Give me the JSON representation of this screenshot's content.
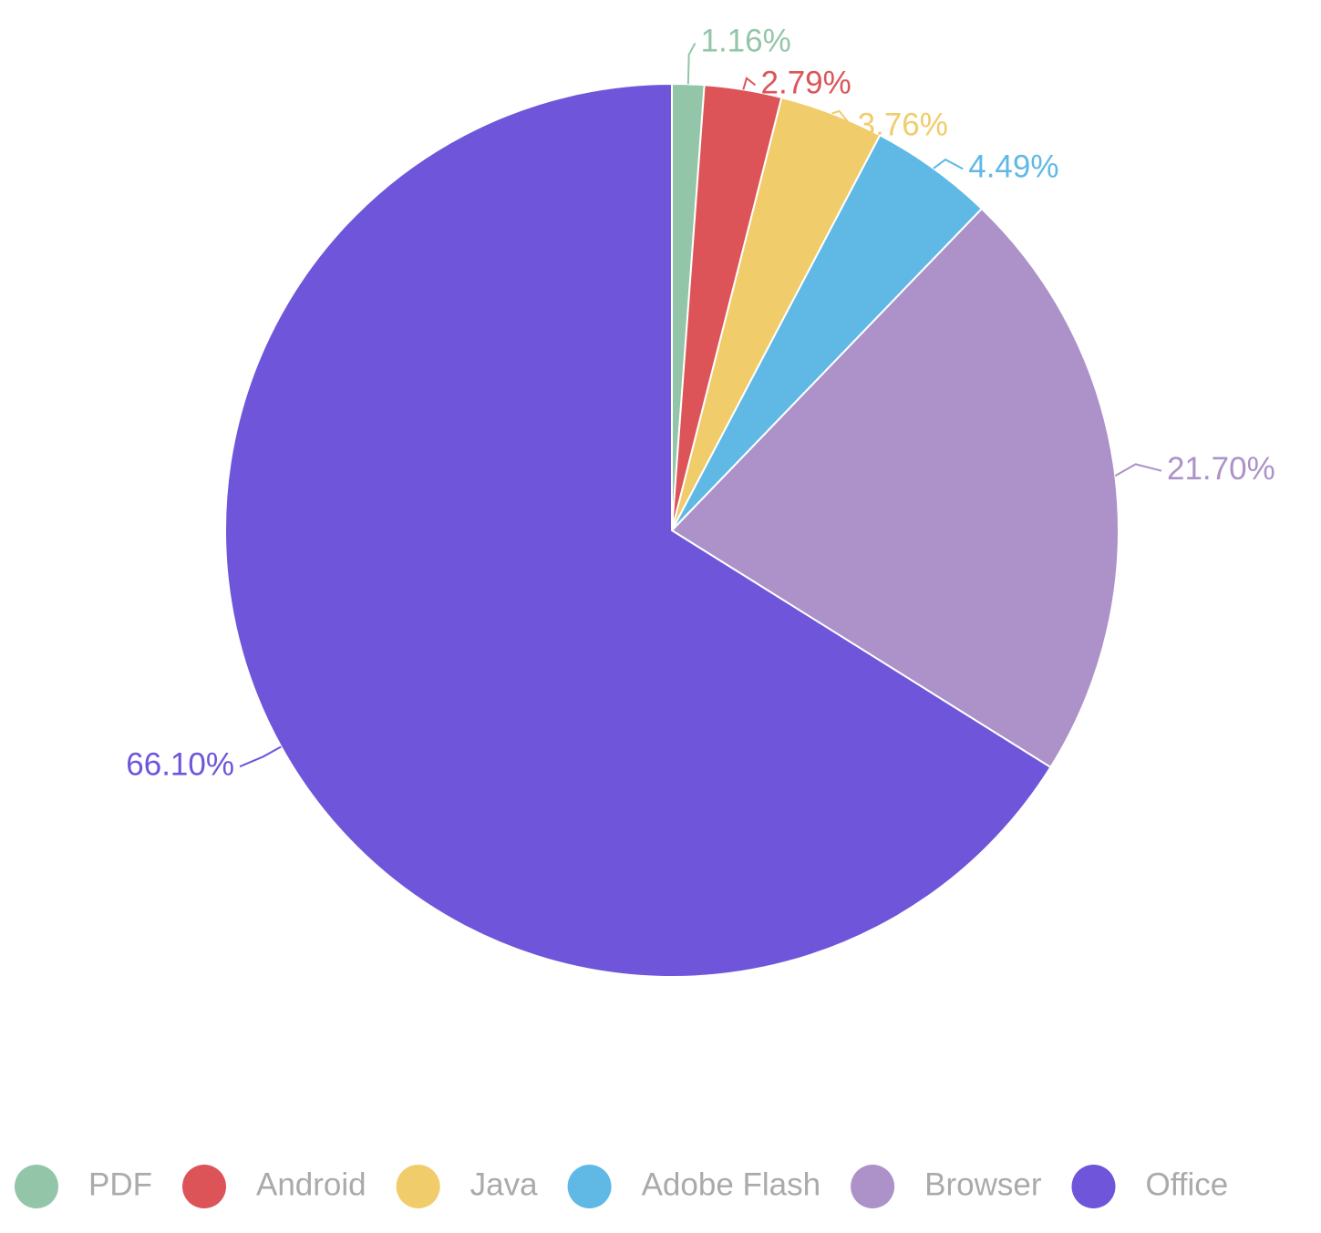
{
  "chart_data": {
    "type": "pie",
    "categories": [
      "PDF",
      "Android",
      "Java",
      "Adobe Flash",
      "Browser",
      "Office"
    ],
    "values": [
      1.16,
      2.79,
      3.76,
      4.49,
      21.7,
      66.1
    ],
    "value_labels": [
      "1.16%",
      "2.79%",
      "3.76%",
      "4.49%",
      "21.70%",
      "66.10%"
    ],
    "colors": [
      "#93c5a8",
      "#dc5458",
      "#f0cc6b",
      "#60b8e5",
      "#ac92c8",
      "#6e55da"
    ],
    "legend": "bottom"
  }
}
